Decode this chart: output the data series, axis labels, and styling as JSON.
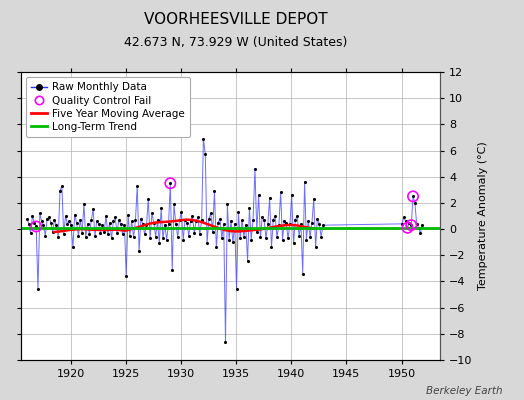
{
  "title": "VOORHEESVILLE DEPOT",
  "subtitle": "42.673 N, 73.929 W (United States)",
  "ylabel_right": "Temperature Anomaly (°C)",
  "watermark": "Berkeley Earth",
  "xlim": [
    1915.5,
    1953.5
  ],
  "ylim": [
    -10,
    12
  ],
  "yticks": [
    -10,
    -8,
    -6,
    -4,
    -2,
    0,
    2,
    4,
    6,
    8,
    10,
    12
  ],
  "xticks": [
    1920,
    1925,
    1930,
    1935,
    1940,
    1945,
    1950
  ],
  "bg_color": "#d8d8d8",
  "plot_bg_color": "#ffffff",
  "grid_color": "#b0b0b0",
  "raw_color": "#3030ff",
  "raw_dot_color": "#000000",
  "ma_color": "#ff0000",
  "trend_color": "#00bb00",
  "qc_color": "#ff00ff",
  "raw_data": [
    [
      1916.04,
      0.8
    ],
    [
      1916.21,
      0.4
    ],
    [
      1916.37,
      -0.3
    ],
    [
      1916.54,
      1.0
    ],
    [
      1916.71,
      0.5
    ],
    [
      1916.88,
      0.2
    ],
    [
      1917.04,
      -4.6
    ],
    [
      1917.21,
      1.2
    ],
    [
      1917.37,
      0.6
    ],
    [
      1917.54,
      0.3
    ],
    [
      1917.71,
      -0.5
    ],
    [
      1917.88,
      0.8
    ],
    [
      1918.04,
      0.9
    ],
    [
      1918.21,
      0.5
    ],
    [
      1918.37,
      -0.2
    ],
    [
      1918.54,
      0.7
    ],
    [
      1918.71,
      0.3
    ],
    [
      1918.88,
      -0.6
    ],
    [
      1919.04,
      2.9
    ],
    [
      1919.21,
      3.3
    ],
    [
      1919.37,
      -0.4
    ],
    [
      1919.54,
      1.0
    ],
    [
      1919.71,
      0.4
    ],
    [
      1919.88,
      0.6
    ],
    [
      1920.04,
      0.3
    ],
    [
      1920.21,
      -1.4
    ],
    [
      1920.37,
      1.1
    ],
    [
      1920.54,
      0.5
    ],
    [
      1920.71,
      -0.5
    ],
    [
      1920.88,
      0.7
    ],
    [
      1921.04,
      -0.3
    ],
    [
      1921.21,
      1.9
    ],
    [
      1921.37,
      -0.6
    ],
    [
      1921.54,
      0.4
    ],
    [
      1921.71,
      -0.4
    ],
    [
      1921.88,
      0.7
    ],
    [
      1922.04,
      1.5
    ],
    [
      1922.21,
      -0.5
    ],
    [
      1922.37,
      0.6
    ],
    [
      1922.54,
      0.4
    ],
    [
      1922.71,
      -0.3
    ],
    [
      1922.88,
      0.3
    ],
    [
      1923.04,
      -0.2
    ],
    [
      1923.21,
      1.0
    ],
    [
      1923.37,
      -0.4
    ],
    [
      1923.54,
      0.5
    ],
    [
      1923.71,
      -0.7
    ],
    [
      1923.88,
      0.6
    ],
    [
      1924.04,
      0.9
    ],
    [
      1924.21,
      -0.3
    ],
    [
      1924.37,
      0.7
    ],
    [
      1924.54,
      0.4
    ],
    [
      1924.71,
      -0.4
    ],
    [
      1924.88,
      0.3
    ],
    [
      1925.04,
      -3.6
    ],
    [
      1925.21,
      1.1
    ],
    [
      1925.37,
      -0.5
    ],
    [
      1925.54,
      0.6
    ],
    [
      1925.71,
      -0.6
    ],
    [
      1925.88,
      0.7
    ],
    [
      1926.04,
      3.3
    ],
    [
      1926.21,
      -1.7
    ],
    [
      1926.37,
      0.8
    ],
    [
      1926.54,
      0.4
    ],
    [
      1926.71,
      -0.4
    ],
    [
      1926.88,
      0.3
    ],
    [
      1927.04,
      2.3
    ],
    [
      1927.21,
      -0.7
    ],
    [
      1927.37,
      1.2
    ],
    [
      1927.54,
      0.5
    ],
    [
      1927.71,
      -0.6
    ],
    [
      1927.88,
      0.7
    ],
    [
      1928.04,
      -1.1
    ],
    [
      1928.21,
      1.6
    ],
    [
      1928.37,
      -0.7
    ],
    [
      1928.54,
      0.3
    ],
    [
      1928.71,
      -0.8
    ],
    [
      1928.88,
      0.4
    ],
    [
      1929.04,
      3.5
    ],
    [
      1929.21,
      -3.1
    ],
    [
      1929.37,
      1.9
    ],
    [
      1929.54,
      0.4
    ],
    [
      1929.71,
      -0.6
    ],
    [
      1929.88,
      0.7
    ],
    [
      1930.04,
      1.3
    ],
    [
      1930.21,
      -0.8
    ],
    [
      1930.37,
      0.7
    ],
    [
      1930.54,
      0.5
    ],
    [
      1930.71,
      -0.5
    ],
    [
      1930.88,
      0.6
    ],
    [
      1931.04,
      1.0
    ],
    [
      1931.21,
      -0.3
    ],
    [
      1931.37,
      0.6
    ],
    [
      1931.54,
      0.9
    ],
    [
      1931.71,
      -0.4
    ],
    [
      1931.88,
      0.7
    ],
    [
      1932.04,
      6.9
    ],
    [
      1932.21,
      5.7
    ],
    [
      1932.37,
      -1.1
    ],
    [
      1932.54,
      0.8
    ],
    [
      1932.71,
      1.2
    ],
    [
      1932.88,
      -0.2
    ],
    [
      1933.04,
      2.9
    ],
    [
      1933.21,
      -1.4
    ],
    [
      1933.37,
      0.5
    ],
    [
      1933.54,
      0.8
    ],
    [
      1933.71,
      -0.7
    ],
    [
      1933.88,
      0.4
    ],
    [
      1934.04,
      -8.6
    ],
    [
      1934.21,
      1.9
    ],
    [
      1934.37,
      -0.8
    ],
    [
      1934.54,
      0.6
    ],
    [
      1934.71,
      -1.0
    ],
    [
      1934.88,
      0.4
    ],
    [
      1935.04,
      -4.6
    ],
    [
      1935.21,
      1.3
    ],
    [
      1935.37,
      -0.7
    ],
    [
      1935.54,
      0.7
    ],
    [
      1935.71,
      -0.6
    ],
    [
      1935.88,
      0.3
    ],
    [
      1936.04,
      -2.4
    ],
    [
      1936.21,
      1.6
    ],
    [
      1936.37,
      -0.8
    ],
    [
      1936.54,
      0.7
    ],
    [
      1936.71,
      4.6
    ],
    [
      1936.88,
      -0.2
    ],
    [
      1937.04,
      2.6
    ],
    [
      1937.21,
      -0.6
    ],
    [
      1937.37,
      0.9
    ],
    [
      1937.54,
      0.7
    ],
    [
      1937.71,
      -0.7
    ],
    [
      1937.88,
      0.4
    ],
    [
      1938.04,
      2.4
    ],
    [
      1938.21,
      -1.4
    ],
    [
      1938.37,
      0.7
    ],
    [
      1938.54,
      1.0
    ],
    [
      1938.71,
      -0.6
    ],
    [
      1938.88,
      0.3
    ],
    [
      1939.04,
      2.8
    ],
    [
      1939.21,
      -0.8
    ],
    [
      1939.37,
      0.6
    ],
    [
      1939.54,
      0.5
    ],
    [
      1939.71,
      -0.7
    ],
    [
      1939.88,
      0.4
    ],
    [
      1940.04,
      2.6
    ],
    [
      1940.21,
      -1.1
    ],
    [
      1940.37,
      0.7
    ],
    [
      1940.54,
      1.0
    ],
    [
      1940.71,
      -0.5
    ],
    [
      1940.88,
      0.4
    ],
    [
      1941.04,
      -3.4
    ],
    [
      1941.21,
      3.6
    ],
    [
      1941.37,
      -0.8
    ],
    [
      1941.54,
      0.6
    ],
    [
      1941.71,
      -0.6
    ],
    [
      1941.88,
      0.5
    ],
    [
      1942.04,
      2.3
    ],
    [
      1942.21,
      -1.4
    ],
    [
      1942.37,
      0.8
    ],
    [
      1942.54,
      0.4
    ],
    [
      1942.71,
      -0.6
    ],
    [
      1942.88,
      0.3
    ],
    [
      1950.04,
      0.4
    ],
    [
      1950.21,
      0.9
    ],
    [
      1950.37,
      0.6
    ],
    [
      1950.54,
      0.1
    ],
    [
      1950.71,
      0.5
    ],
    [
      1950.88,
      0.3
    ],
    [
      1951.04,
      2.5
    ],
    [
      1951.21,
      2.0
    ],
    [
      1951.37,
      0.4
    ],
    [
      1951.54,
      0.1
    ],
    [
      1951.71,
      -0.3
    ],
    [
      1951.88,
      0.3
    ]
  ],
  "qc_fail_points": [
    [
      1916.88,
      0.2
    ],
    [
      1929.04,
      3.5
    ],
    [
      1950.54,
      0.1
    ],
    [
      1950.88,
      0.3
    ],
    [
      1951.04,
      2.5
    ]
  ],
  "ma_data": [
    [
      1918.5,
      -0.22
    ],
    [
      1919.0,
      -0.18
    ],
    [
      1919.5,
      -0.12
    ],
    [
      1920.0,
      -0.06
    ],
    [
      1920.5,
      -0.02
    ],
    [
      1921.0,
      0.0
    ],
    [
      1921.5,
      -0.02
    ],
    [
      1922.0,
      -0.05
    ],
    [
      1922.5,
      -0.06
    ],
    [
      1923.0,
      -0.07
    ],
    [
      1923.5,
      -0.06
    ],
    [
      1924.0,
      -0.04
    ],
    [
      1924.5,
      -0.08
    ],
    [
      1925.0,
      -0.12
    ],
    [
      1925.5,
      0.0
    ],
    [
      1926.0,
      0.12
    ],
    [
      1926.5,
      0.25
    ],
    [
      1927.0,
      0.38
    ],
    [
      1927.5,
      0.48
    ],
    [
      1928.0,
      0.52
    ],
    [
      1928.5,
      0.55
    ],
    [
      1929.0,
      0.58
    ],
    [
      1929.5,
      0.62
    ],
    [
      1930.0,
      0.68
    ],
    [
      1930.5,
      0.72
    ],
    [
      1931.0,
      0.7
    ],
    [
      1931.5,
      0.62
    ],
    [
      1932.0,
      0.5
    ],
    [
      1932.5,
      0.35
    ],
    [
      1933.0,
      0.2
    ],
    [
      1933.5,
      0.05
    ],
    [
      1934.0,
      -0.08
    ],
    [
      1934.5,
      -0.15
    ],
    [
      1935.0,
      -0.18
    ],
    [
      1935.5,
      -0.16
    ],
    [
      1936.0,
      -0.12
    ],
    [
      1936.5,
      -0.08
    ],
    [
      1937.0,
      -0.04
    ],
    [
      1937.5,
      0.02
    ],
    [
      1938.0,
      0.1
    ],
    [
      1938.5,
      0.18
    ],
    [
      1939.0,
      0.25
    ],
    [
      1939.5,
      0.3
    ],
    [
      1940.0,
      0.32
    ],
    [
      1940.5,
      0.28
    ],
    [
      1941.0,
      0.2
    ],
    [
      1941.5,
      0.12
    ],
    [
      1942.0,
      0.05
    ]
  ],
  "trend_x": [
    1915.5,
    1953.5
  ],
  "trend_y": [
    0.12,
    0.12
  ],
  "title_fontsize": 11,
  "subtitle_fontsize": 9,
  "tick_fontsize": 8,
  "legend_fontsize": 7.5
}
